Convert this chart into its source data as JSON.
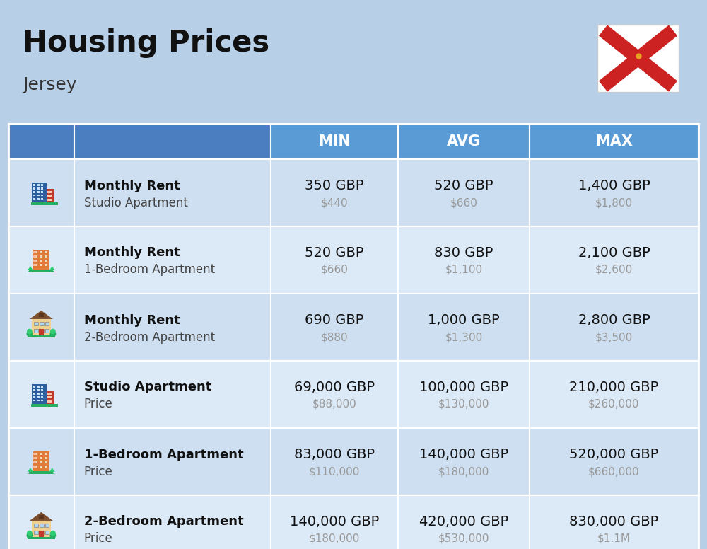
{
  "title": "Housing Prices",
  "subtitle": "Jersey",
  "background_color": "#b8cfe8",
  "header_bg_color": "#5b9bd5",
  "header_text_color": "#ffffff",
  "row_bg_odd": "#cddff0",
  "row_bg_even": "#dce9f7",
  "divider_color": "#ffffff",
  "col_header_labels": [
    "MIN",
    "AVG",
    "MAX"
  ],
  "rows": [
    {
      "bold_label": "Monthly Rent",
      "sub_label": "Studio Apartment",
      "min_gbp": "350 GBP",
      "min_usd": "$440",
      "avg_gbp": "520 GBP",
      "avg_usd": "$660",
      "max_gbp": "1,400 GBP",
      "max_usd": "$1,800",
      "icon_type": "blue_office"
    },
    {
      "bold_label": "Monthly Rent",
      "sub_label": "1-Bedroom Apartment",
      "min_gbp": "520 GBP",
      "min_usd": "$660",
      "avg_gbp": "830 GBP",
      "avg_usd": "$1,100",
      "max_gbp": "2,100 GBP",
      "max_usd": "$2,600",
      "icon_type": "orange_apartment"
    },
    {
      "bold_label": "Monthly Rent",
      "sub_label": "2-Bedroom Apartment",
      "min_gbp": "690 GBP",
      "min_usd": "$880",
      "avg_gbp": "1,000 GBP",
      "avg_usd": "$1,300",
      "max_gbp": "2,800 GBP",
      "max_usd": "$3,500",
      "icon_type": "beige_house"
    },
    {
      "bold_label": "Studio Apartment",
      "sub_label": "Price",
      "min_gbp": "69,000 GBP",
      "min_usd": "$88,000",
      "avg_gbp": "100,000 GBP",
      "avg_usd": "$130,000",
      "max_gbp": "210,000 GBP",
      "max_usd": "$260,000",
      "icon_type": "blue_office"
    },
    {
      "bold_label": "1-Bedroom Apartment",
      "sub_label": "Price",
      "min_gbp": "83,000 GBP",
      "min_usd": "$110,000",
      "avg_gbp": "140,000 GBP",
      "avg_usd": "$180,000",
      "max_gbp": "520,000 GBP",
      "max_usd": "$660,000",
      "icon_type": "orange_apartment"
    },
    {
      "bold_label": "2-Bedroom Apartment",
      "sub_label": "Price",
      "min_gbp": "140,000 GBP",
      "min_usd": "$180,000",
      "avg_gbp": "420,000 GBP",
      "avg_usd": "$530,000",
      "max_gbp": "830,000 GBP",
      "max_usd": "$1.1M",
      "icon_type": "beige_house"
    }
  ]
}
